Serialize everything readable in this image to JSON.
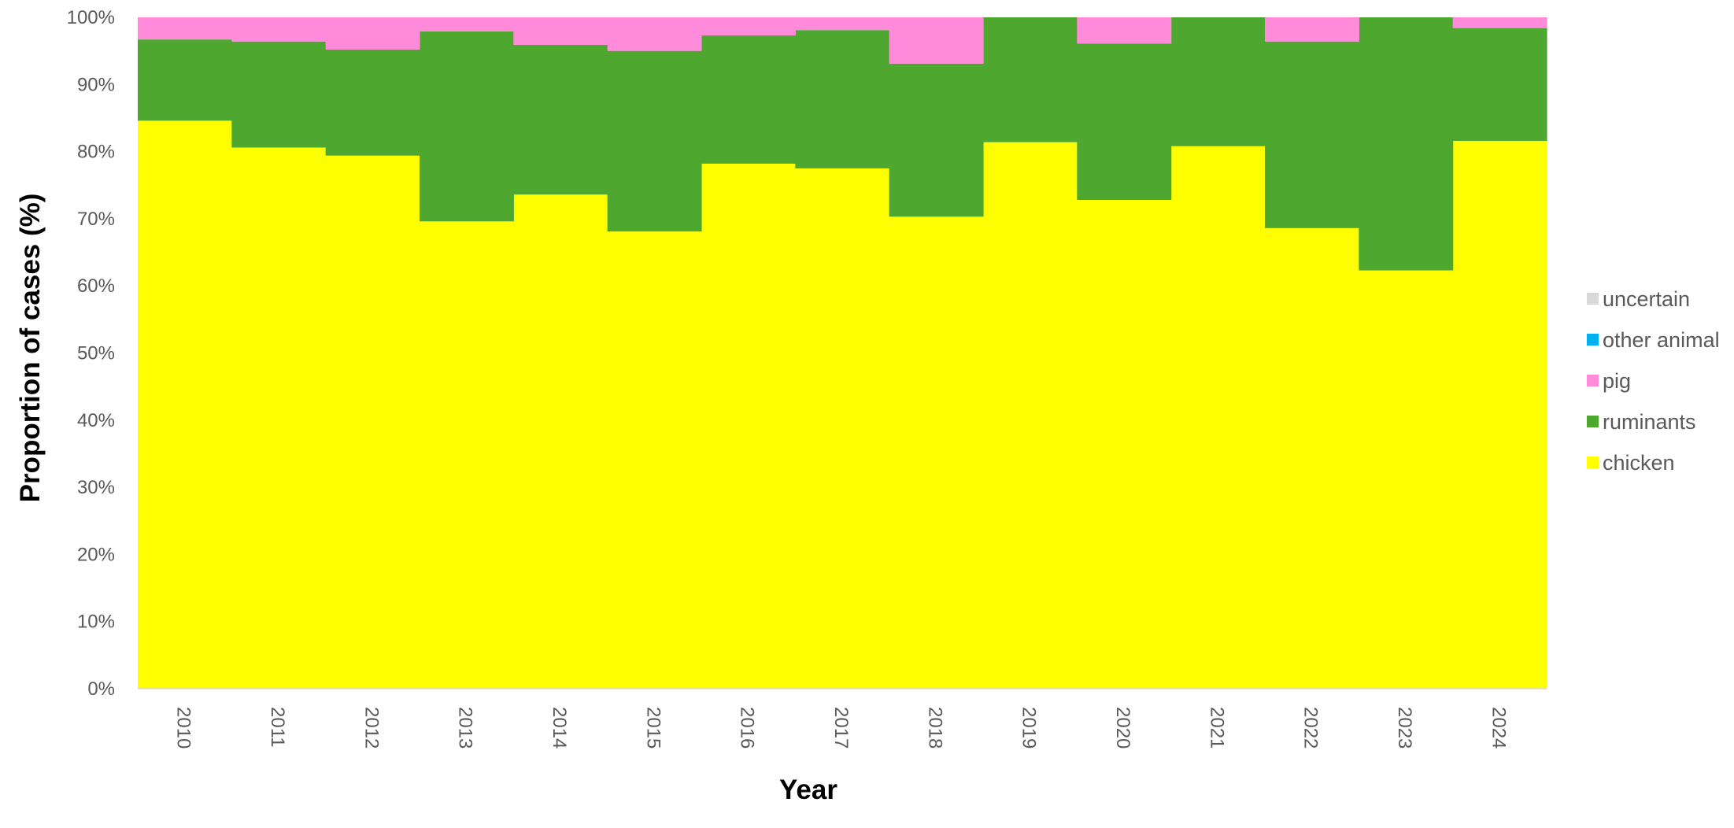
{
  "chart_data": {
    "type": "area",
    "stacked": true,
    "step": true,
    "percent": true,
    "title": "",
    "xlabel": "Year",
    "ylabel": "Proportion of cases (%)",
    "ylim": [
      0,
      100
    ],
    "ytick_step": 10,
    "yticks": [
      "0%",
      "10%",
      "20%",
      "30%",
      "40%",
      "50%",
      "60%",
      "70%",
      "80%",
      "90%",
      "100%"
    ],
    "grid": false,
    "legend_position": "right",
    "categories": [
      "2010",
      "2011",
      "2012",
      "2013",
      "2014",
      "2015",
      "2016",
      "2017",
      "2018",
      "2019",
      "2020",
      "2021",
      "2022",
      "2023",
      "2024"
    ],
    "series": [
      {
        "name": "chicken",
        "color": "#FFFF00",
        "values": [
          84.6,
          80.6,
          79.4,
          69.6,
          73.6,
          68.1,
          78.2,
          77.5,
          70.3,
          81.4,
          72.8,
          80.8,
          68.6,
          62.3,
          81.6
        ]
      },
      {
        "name": "ruminants",
        "color": "#4EA72E",
        "values": [
          12.1,
          15.8,
          15.8,
          28.3,
          22.3,
          26.9,
          19.1,
          20.6,
          22.8,
          18.6,
          23.3,
          19.2,
          27.8,
          37.7,
          16.8
        ]
      },
      {
        "name": "pig",
        "color": "#FF8BDA",
        "values": [
          3.3,
          3.6,
          4.8,
          2.1,
          4.1,
          5.0,
          2.7,
          1.9,
          6.9,
          0.0,
          3.9,
          0.0,
          3.6,
          0.0,
          1.6
        ]
      },
      {
        "name": "other animal",
        "color": "#00B0F0",
        "values": [
          0,
          0,
          0,
          0,
          0,
          0,
          0,
          0,
          0,
          0,
          0,
          0,
          0,
          0,
          0
        ]
      },
      {
        "name": "uncertain",
        "color": "#D9D9D9",
        "values": [
          0,
          0,
          0,
          0,
          0,
          0,
          0,
          0,
          0,
          0,
          0,
          0,
          0,
          0,
          0
        ]
      }
    ],
    "legend_order": [
      "uncertain",
      "other animal",
      "pig",
      "ruminants",
      "chicken"
    ]
  }
}
